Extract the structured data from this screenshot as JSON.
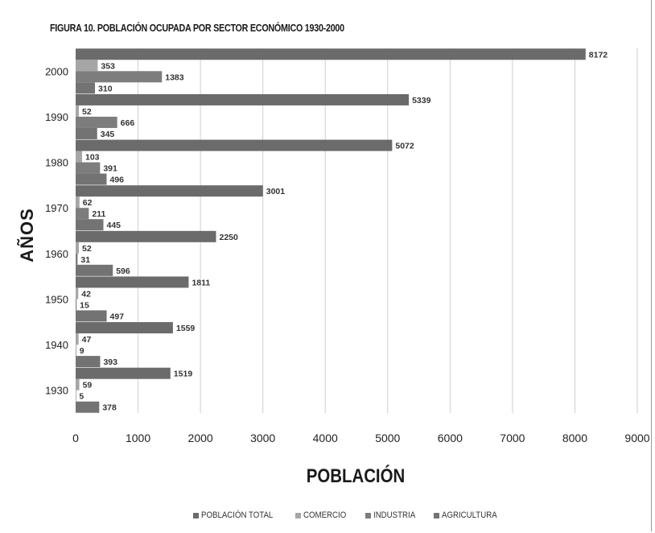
{
  "chart_data": {
    "type": "bar",
    "orientation": "horizontal",
    "title": "FIGURA 10. POBLACIÓN OCUPADA POR SECTOR ECONÓMICO 1930-2000",
    "xlabel": "POBLACIÓN",
    "ylabel": "AÑOS",
    "categories": [
      "1930",
      "1940",
      "1950",
      "1960",
      "1970",
      "1980",
      "1990",
      "2000"
    ],
    "xlim": [
      0,
      9000
    ],
    "xticks": [
      0,
      1000,
      2000,
      3000,
      4000,
      5000,
      6000,
      7000,
      8000,
      9000
    ],
    "grid": true,
    "legend_position": "bottom",
    "series": [
      {
        "name": "POBLACIÓN TOTAL",
        "color": "#6b6b6b",
        "values": [
          1519,
          1559,
          1811,
          2250,
          3001,
          5072,
          5339,
          8172
        ]
      },
      {
        "name": "COMERCIO",
        "color": "#a6a6a6",
        "values": [
          59,
          47,
          42,
          52,
          62,
          103,
          52,
          353
        ]
      },
      {
        "name": "INDUSTRIA",
        "color": "#7d7d7d",
        "values": [
          5,
          9,
          15,
          31,
          211,
          391,
          666,
          1383
        ]
      },
      {
        "name": "AGRICULTURA",
        "color": "#737373",
        "values": [
          378,
          393,
          497,
          596,
          445,
          496,
          345,
          310
        ]
      }
    ]
  }
}
